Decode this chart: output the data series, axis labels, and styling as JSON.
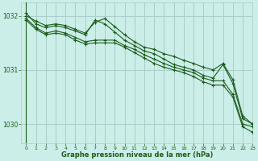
{
  "title": "Graphe pression niveau de la mer (hPa)",
  "bg_color": "#cceee8",
  "grid_color": "#aacccc",
  "line_color": "#1a5c1a",
  "xlim": [
    -0.5,
    23
  ],
  "ylim": [
    1029.65,
    1032.25
  ],
  "yticks": [
    1030,
    1031,
    1032
  ],
  "xticks": [
    0,
    1,
    2,
    3,
    4,
    5,
    6,
    7,
    8,
    9,
    10,
    11,
    12,
    13,
    14,
    15,
    16,
    17,
    18,
    19,
    20,
    21,
    22,
    23
  ],
  "series": [
    [
      1032.05,
      1031.85,
      1031.78,
      1031.82,
      1031.78,
      1031.72,
      1031.65,
      1031.92,
      1031.85,
      1031.7,
      1031.55,
      1031.45,
      1031.35,
      1031.3,
      1031.2,
      1031.1,
      1031.05,
      1031.0,
      1030.9,
      1030.85,
      1031.1,
      1030.75,
      1030.1,
      1030.0
    ],
    [
      1032.0,
      1031.9,
      1031.82,
      1031.85,
      1031.82,
      1031.75,
      1031.68,
      1031.88,
      1031.95,
      1031.8,
      1031.65,
      1031.52,
      1031.42,
      1031.38,
      1031.3,
      1031.25,
      1031.18,
      1031.12,
      1031.05,
      1031.0,
      1031.12,
      1030.82,
      1030.15,
      1030.0
    ],
    [
      1031.95,
      1031.78,
      1031.68,
      1031.72,
      1031.68,
      1031.6,
      1031.52,
      1031.55,
      1031.55,
      1031.55,
      1031.45,
      1031.38,
      1031.28,
      1031.2,
      1031.12,
      1031.05,
      1031.0,
      1030.95,
      1030.85,
      1030.8,
      1030.8,
      1030.55,
      1030.0,
      1029.95
    ],
    [
      1031.92,
      1031.75,
      1031.65,
      1031.68,
      1031.65,
      1031.55,
      1031.48,
      1031.5,
      1031.5,
      1031.5,
      1031.42,
      1031.32,
      1031.22,
      1031.12,
      1031.05,
      1031.0,
      1030.95,
      1030.88,
      1030.78,
      1030.72,
      1030.72,
      1030.5,
      1029.95,
      1029.85
    ]
  ]
}
